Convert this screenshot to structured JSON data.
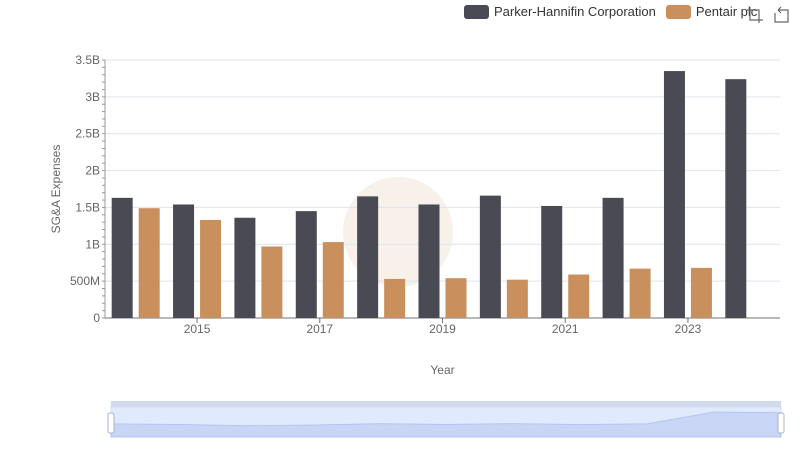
{
  "legend": {
    "items": [
      {
        "name": "Parker-Hannifin Corporation",
        "color": "#4a4a55"
      },
      {
        "name": "Pentair plc",
        "color": "#c9905e"
      }
    ]
  },
  "toolbox": {
    "icons": [
      "zoom-icon",
      "restore-icon"
    ]
  },
  "chart_data": {
    "type": "bar",
    "xlabel": "Year",
    "ylabel": "SG&A Expenses",
    "categories": [
      "2014",
      "2015",
      "2016",
      "2017",
      "2018",
      "2019",
      "2020",
      "2021",
      "2022",
      "2023",
      "2024"
    ],
    "x_tick_labels": [
      "2015",
      "2017",
      "2019",
      "2021",
      "2023"
    ],
    "y_ticks": [
      {
        "value": 0,
        "label": "0"
      },
      {
        "value": 500000000,
        "label": "500M"
      },
      {
        "value": 1000000000,
        "label": "1B"
      },
      {
        "value": 1500000000,
        "label": "1.5B"
      },
      {
        "value": 2000000000,
        "label": "2B"
      },
      {
        "value": 2500000000,
        "label": "2.5B"
      },
      {
        "value": 3000000000,
        "label": "3B"
      },
      {
        "value": 3500000000,
        "label": "3.5B"
      }
    ],
    "ylim": [
      0,
      3500000000
    ],
    "series": [
      {
        "name": "Parker-Hannifin Corporation",
        "color": "#4a4a55",
        "values": [
          1630000000,
          1540000000,
          1360000000,
          1450000000,
          1650000000,
          1540000000,
          1660000000,
          1520000000,
          1630000000,
          3350000000,
          3240000000
        ]
      },
      {
        "name": "Pentair plc",
        "color": "#c9905e",
        "values": [
          1490000000,
          1330000000,
          970000000,
          1030000000,
          530000000,
          540000000,
          520000000,
          590000000,
          670000000,
          680000000,
          null
        ]
      }
    ],
    "grid": true,
    "legend_position": "top-right",
    "data_zoom": {
      "range": [
        0,
        100
      ]
    }
  }
}
